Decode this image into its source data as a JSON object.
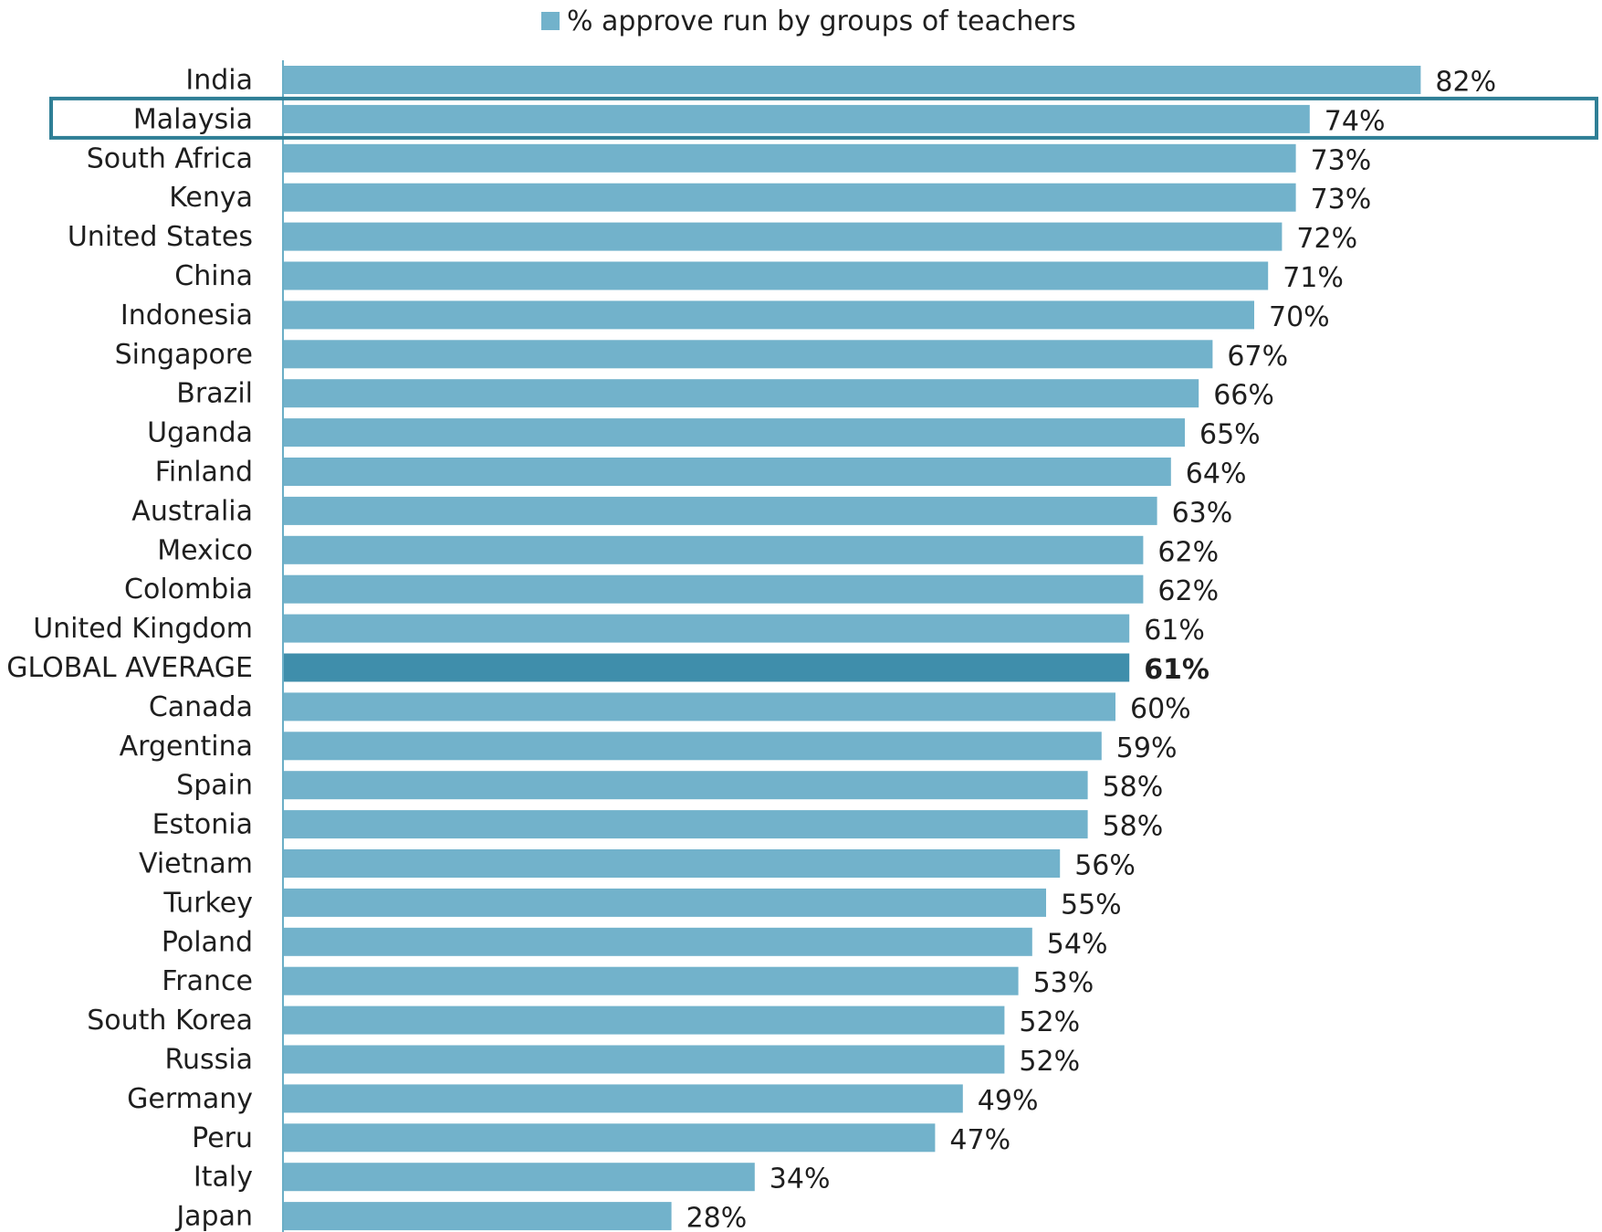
{
  "chart_data": {
    "type": "bar",
    "orientation": "horizontal",
    "legend": {
      "position": "top-center",
      "entries": [
        "% approve run by groups of teachers"
      ]
    },
    "series": [
      {
        "name": "% approve run by groups of teachers",
        "values": [
          82,
          74,
          73,
          73,
          72,
          71,
          70,
          67,
          66,
          65,
          64,
          63,
          62,
          62,
          61,
          61,
          60,
          59,
          58,
          58,
          56,
          55,
          54,
          53,
          52,
          52,
          49,
          47,
          34,
          28
        ]
      }
    ],
    "categories": [
      "India",
      "Malaysia",
      "South Africa",
      "Kenya",
      "United States",
      "China",
      "Indonesia",
      "Singapore",
      "Brazil",
      "Uganda",
      "Finland",
      "Australia",
      "Mexico",
      "Colombia",
      "United Kingdom",
      "GLOBAL AVERAGE",
      "Canada",
      "Argentina",
      "Spain",
      "Estonia",
      "Vietnam",
      "Turkey",
      "Poland",
      "France",
      "South Korea",
      "Russia",
      "Germany",
      "Peru",
      "Italy",
      "Japan"
    ],
    "value_labels": [
      "82%",
      "74%",
      "73%",
      "73%",
      "72%",
      "71%",
      "70%",
      "67%",
      "66%",
      "65%",
      "64%",
      "63%",
      "62%",
      "62%",
      "61%",
      "61%",
      "60%",
      "59%",
      "58%",
      "58%",
      "56%",
      "55%",
      "54%",
      "53%",
      "52%",
      "52%",
      "49%",
      "47%",
      "34%",
      "28%"
    ],
    "highlighted_category": "Malaysia",
    "emphasized_category": "GLOBAL AVERAGE",
    "xlim": [
      0,
      100
    ],
    "grid": false,
    "colors": {
      "bar": "#72b2cb",
      "emphasis_bar": "#3f8eab",
      "highlight_box": "#2f7f96",
      "axis": "#6aaec6"
    }
  }
}
